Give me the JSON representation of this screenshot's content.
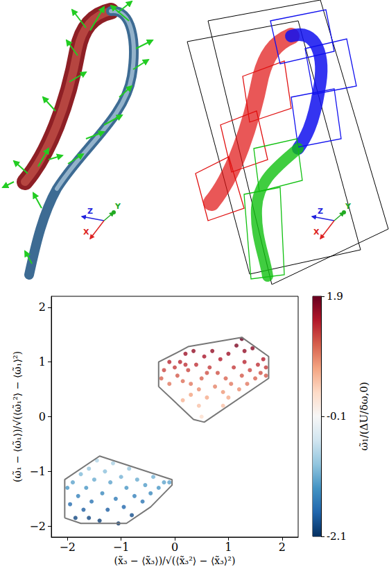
{
  "renderings": [
    {
      "axis_labels": [
        "Z",
        "Y",
        "X"
      ]
    },
    {
      "axis_labels": [
        "Z",
        "Y",
        "X"
      ]
    }
  ],
  "chart_data": {
    "type": "scatter",
    "xlabel": "(x̃₃ − ⟨x̃₃⟩)/√(⟨x̃₃²⟩ − ⟨x̃₃⟩²)",
    "ylabel": "(ω̃₁ − ⟨ω̃₁⟩)/√(⟨ω̃₁²⟩ − ⟨ω̃₁⟩²)",
    "xlim": [
      -2.3,
      2.3
    ],
    "ylim": [
      -2.2,
      2.2
    ],
    "xticks": [
      {
        "value": -2,
        "label": "−2"
      },
      {
        "value": -1,
        "label": "−1"
      },
      0,
      1,
      2
    ],
    "yticks": [
      {
        "value": -2,
        "label": "−2"
      },
      {
        "value": -1,
        "label": "−1"
      },
      0,
      1,
      2
    ],
    "grid": false,
    "points": [
      [
        -0.25,
        0.7,
        1.08
      ],
      [
        -0.2,
        0.85,
        1.25
      ],
      [
        -0.1,
        0.6,
        0.96
      ],
      [
        0.0,
        0.9,
        1.31
      ],
      [
        0.05,
        0.75,
        1.14
      ],
      [
        0.1,
        1.0,
        1.43
      ],
      [
        0.15,
        0.65,
        1.02
      ],
      [
        0.2,
        1.15,
        1.61
      ],
      [
        0.25,
        0.85,
        1.25
      ],
      [
        0.3,
        0.4,
        0.72
      ],
      [
        0.35,
        1.2,
        1.67
      ],
      [
        0.4,
        0.95,
        1.37
      ],
      [
        0.45,
        0.2,
        0.49
      ],
      [
        0.5,
        0.0,
        0.25
      ],
      [
        0.5,
        0.7,
        1.08
      ],
      [
        0.55,
        1.1,
        1.55
      ],
      [
        0.6,
        0.35,
        0.66
      ],
      [
        0.65,
        0.9,
        1.31
      ],
      [
        0.7,
        1.2,
        1.67
      ],
      [
        0.75,
        0.55,
        0.9
      ],
      [
        0.8,
        0.8,
        1.19
      ],
      [
        0.85,
        1.05,
        1.49
      ],
      [
        0.9,
        0.45,
        0.78
      ],
      [
        0.95,
        0.7,
        1.08
      ],
      [
        1.0,
        1.15,
        1.61
      ],
      [
        1.05,
        0.6,
        0.96
      ],
      [
        1.1,
        0.9,
        1.31
      ],
      [
        1.15,
        1.3,
        1.78
      ],
      [
        1.2,
        0.5,
        0.84
      ],
      [
        1.25,
        0.75,
        1.14
      ],
      [
        1.25,
        1.42,
        1.9
      ],
      [
        1.3,
        1.0,
        1.43
      ],
      [
        1.35,
        0.6,
        0.96
      ],
      [
        1.4,
        0.85,
        1.25
      ],
      [
        1.45,
        1.25,
        1.73
      ],
      [
        1.5,
        0.7,
        1.08
      ],
      [
        1.55,
        0.95,
        1.37
      ],
      [
        1.6,
        0.8,
        1.19
      ],
      [
        1.65,
        1.05,
        1.49
      ],
      [
        1.7,
        0.75,
        1.14
      ],
      [
        1.7,
        0.9,
        1.31
      ],
      [
        0.15,
        0.3,
        0.6
      ],
      [
        0.3,
        0.6,
        0.96
      ],
      [
        0.9,
        0.2,
        0.49
      ],
      [
        0.45,
        0.5,
        0.84
      ],
      [
        1.0,
        0.35,
        0.66
      ],
      [
        0.6,
        0.8,
        1.19
      ],
      [
        -0.1,
        1.0,
        1.43
      ],
      [
        0.2,
        0.95,
        1.37
      ],
      [
        1.3,
        1.2,
        1.67
      ],
      [
        -2.0,
        -1.3,
        -1.28
      ],
      [
        -1.95,
        -1.6,
        -1.64
      ],
      [
        -1.9,
        -1.2,
        -1.17
      ],
      [
        -1.85,
        -1.85,
        -1.93
      ],
      [
        -1.8,
        -1.45,
        -1.46
      ],
      [
        -1.75,
        -1.05,
        -0.99
      ],
      [
        -1.7,
        -1.7,
        -1.76
      ],
      [
        -1.65,
        -1.3,
        -1.28
      ],
      [
        -1.6,
        -0.95,
        -0.87
      ],
      [
        -1.55,
        -1.55,
        -1.58
      ],
      [
        -1.5,
        -1.15,
        -1.11
      ],
      [
        -1.45,
        -0.8,
        -0.69
      ],
      [
        -1.4,
        -1.9,
        -1.99
      ],
      [
        -1.35,
        -1.4,
        -1.4
      ],
      [
        -1.3,
        -1.0,
        -0.93
      ],
      [
        -1.25,
        -1.7,
        -1.76
      ],
      [
        -1.2,
        -1.2,
        -1.17
      ],
      [
        -1.15,
        -0.85,
        -0.75
      ],
      [
        -1.1,
        -1.5,
        -1.52
      ],
      [
        -1.05,
        -1.95,
        -2.05
      ],
      [
        -1.0,
        -1.1,
        -1.05
      ],
      [
        -0.95,
        -1.65,
        -1.7
      ],
      [
        -0.9,
        -1.3,
        -1.28
      ],
      [
        -0.85,
        -0.95,
        -0.87
      ],
      [
        -0.8,
        -1.8,
        -1.87
      ],
      [
        -0.75,
        -1.45,
        -1.46
      ],
      [
        -0.7,
        -1.15,
        -1.11
      ],
      [
        -0.6,
        -1.55,
        -1.58
      ],
      [
        -0.55,
        -1.25,
        -1.23
      ],
      [
        -0.45,
        -1.4,
        -1.4
      ],
      [
        -0.4,
        -1.1,
        -1.05
      ],
      [
        -0.3,
        -1.3,
        -1.28
      ],
      [
        -0.2,
        -1.2,
        -1.17
      ],
      [
        -0.1,
        -1.2,
        -1.17
      ],
      [
        -1.6,
        -1.85,
        -1.93
      ]
    ],
    "hulls": [
      [
        [
          -0.3,
          0.55
        ],
        [
          -0.3,
          1.0
        ],
        [
          0.1,
          1.2
        ],
        [
          0.25,
          1.28
        ],
        [
          1.25,
          1.45
        ],
        [
          1.75,
          1.1
        ],
        [
          1.75,
          0.7
        ],
        [
          0.55,
          -0.1
        ],
        [
          0.35,
          -0.05
        ]
      ],
      [
        [
          -2.05,
          -1.85
        ],
        [
          -2.05,
          -1.15
        ],
        [
          -1.4,
          -0.72
        ],
        [
          -0.05,
          -1.15
        ],
        [
          -0.05,
          -1.25
        ],
        [
          -0.45,
          -1.65
        ],
        [
          -0.9,
          -1.95
        ],
        [
          -1.75,
          -1.95
        ]
      ]
    ],
    "colorbar": {
      "label": "ω̃₁/(ΔU/δω,0)",
      "range": [
        -2.1,
        1.9
      ],
      "ticks": [
        1.9,
        -0.1,
        -2.1
      ]
    }
  }
}
